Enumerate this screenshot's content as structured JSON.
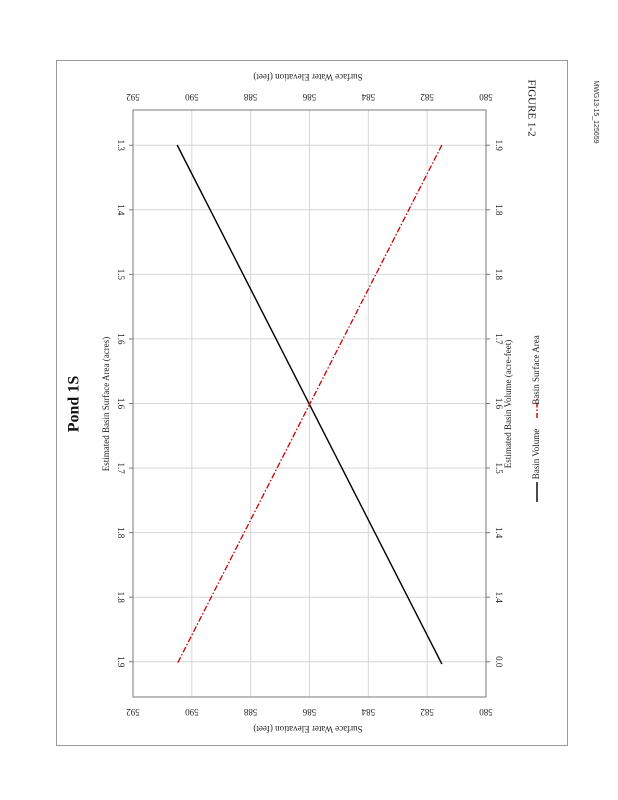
{
  "chart_data": {
    "type": "line",
    "title": "Pond 1S",
    "figure_label": "FIGURE 1-2",
    "document_id": "MWG13-15_125659",
    "axes": {
      "surface_area": {
        "label": "Estimated Basin Surface Area (acres)",
        "ticks": [
          "1.3",
          "1.4",
          "1.5",
          "1.6",
          "1.6",
          "1.7",
          "1.8",
          "1.8",
          "1.9"
        ]
      },
      "volume": {
        "label": "Estimated Basin Volume (acre-feet)",
        "ticks": [
          "1.9",
          "1.8",
          "1.8",
          "1.7",
          "1.6",
          "1.5",
          "1.4",
          "1.4",
          "0.0"
        ]
      },
      "elevation": {
        "label": "Surface Water Elevation (feet)",
        "ticks": [
          "592",
          "590",
          "588",
          "586",
          "584",
          "582",
          "580"
        ],
        "range": [
          580,
          592
        ]
      }
    },
    "grid": true,
    "legend_position": "bottom",
    "series": [
      {
        "name": "Basin Volume",
        "color": "#000000",
        "style": "solid",
        "elevation_start": 590.5,
        "elevation_end": 581.5
      },
      {
        "name": "Basin Surface Area",
        "color": "#cc0000",
        "style": "dash-dot",
        "elevation_start": 581.5,
        "elevation_end": 590.5
      }
    ]
  }
}
